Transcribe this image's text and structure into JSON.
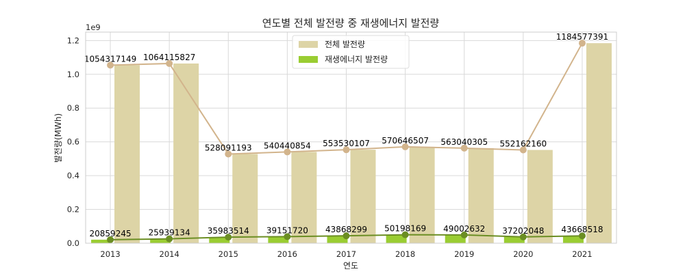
{
  "chart_data": {
    "type": "bar",
    "title": "연도별 전체 발전량 중 재생에너지 발전량",
    "xlabel": "연도",
    "ylabel": "발전량(MWh)",
    "y_offset_label": "1e9",
    "ylim": [
      0,
      1.25
    ],
    "y_ticks": [
      "0.0",
      "0.2",
      "0.4",
      "0.6",
      "0.8",
      "1.0",
      "1.2"
    ],
    "categories": [
      "2013",
      "2014",
      "2015",
      "2016",
      "2017",
      "2018",
      "2019",
      "2020",
      "2021"
    ],
    "grid": true,
    "legend_position": "top-center",
    "series": [
      {
        "name": "전체 발전량",
        "color": "#ddd4a6",
        "line_color": "#d2b48c",
        "values": [
          1054317149,
          1064115827,
          528091193,
          540440854,
          553530107,
          570646507,
          563040305,
          552162160,
          1184577391
        ],
        "value_labels": [
          "1054317149",
          "1064115827",
          "528091193",
          "540440854",
          "553530107",
          "570646507",
          "563040305",
          "552162160",
          "1184577391"
        ]
      },
      {
        "name": "재생에너지 발전량",
        "color": "#9acd32",
        "line_color": "#6b8e23",
        "values": [
          20859245,
          25939134,
          35983514,
          39151720,
          43868299,
          50198169,
          49002632,
          37202048,
          43668518
        ],
        "value_labels": [
          "20859245",
          "25939134",
          "35983514",
          "39151720",
          "43868299",
          "50198169",
          "49002632",
          "37202048",
          "43668518"
        ]
      }
    ]
  }
}
